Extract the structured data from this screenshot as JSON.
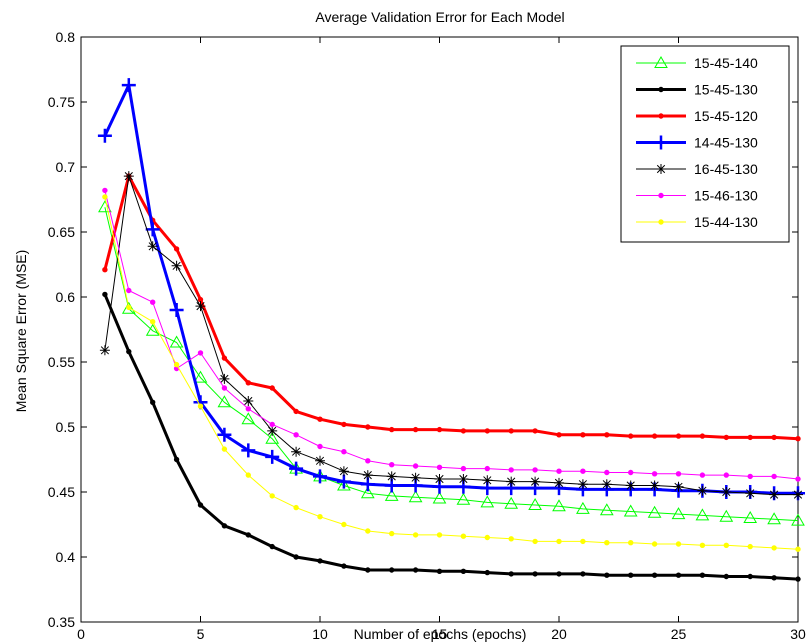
{
  "chart_data": {
    "type": "line",
    "title": "Average Validation Error for Each Model",
    "xlabel": "Number of epochs (epochs)",
    "ylabel": "Mean Square Error (MSE)",
    "xlim": [
      0,
      30
    ],
    "ylim": [
      0.35,
      0.8
    ],
    "xticks": [
      0,
      5,
      10,
      15,
      20,
      25,
      30
    ],
    "yticks": [
      0.35,
      0.4,
      0.45,
      0.5,
      0.55,
      0.6,
      0.65,
      0.7,
      0.75,
      0.8
    ],
    "ytick_labels": [
      "0.35",
      "0.4",
      "0.45",
      "0.5",
      "0.55",
      "0.6",
      "0.65",
      "0.7",
      "0.75",
      "0.8"
    ],
    "grid": false,
    "legend_position": "top-right",
    "x": [
      1,
      2,
      3,
      4,
      5,
      6,
      7,
      8,
      9,
      10,
      11,
      12,
      13,
      14,
      15,
      16,
      17,
      18,
      19,
      20,
      21,
      22,
      23,
      24,
      25,
      26,
      27,
      28,
      29,
      30
    ],
    "series": [
      {
        "name": "15-45-140",
        "color": "#00ff00",
        "marker": "triangle",
        "line_width": 1,
        "values": [
          0.669,
          0.591,
          0.574,
          0.565,
          0.538,
          0.519,
          0.506,
          0.491,
          0.468,
          0.462,
          0.455,
          0.449,
          0.447,
          0.446,
          0.445,
          0.444,
          0.442,
          0.441,
          0.44,
          0.439,
          0.437,
          0.436,
          0.435,
          0.434,
          0.433,
          0.432,
          0.431,
          0.43,
          0.429,
          0.428
        ]
      },
      {
        "name": "15-45-130",
        "color": "#000000",
        "marker": "dot",
        "line_width": 3,
        "values": [
          0.602,
          0.558,
          0.519,
          0.475,
          0.44,
          0.424,
          0.417,
          0.408,
          0.4,
          0.397,
          0.393,
          0.39,
          0.39,
          0.39,
          0.389,
          0.389,
          0.388,
          0.387,
          0.387,
          0.387,
          0.387,
          0.386,
          0.386,
          0.386,
          0.386,
          0.386,
          0.385,
          0.385,
          0.384,
          0.383
        ]
      },
      {
        "name": "15-45-120",
        "color": "#ff0000",
        "marker": "dot",
        "line_width": 3,
        "values": [
          0.621,
          0.693,
          0.659,
          0.637,
          0.598,
          0.553,
          0.534,
          0.53,
          0.512,
          0.506,
          0.502,
          0.5,
          0.498,
          0.498,
          0.498,
          0.497,
          0.497,
          0.497,
          0.497,
          0.494,
          0.494,
          0.494,
          0.493,
          0.493,
          0.493,
          0.493,
          0.492,
          0.492,
          0.492,
          0.491
        ]
      },
      {
        "name": "14-45-130",
        "color": "#0000ff",
        "marker": "plus",
        "line_width": 3,
        "values": [
          0.724,
          0.763,
          0.652,
          0.59,
          0.519,
          0.494,
          0.482,
          0.477,
          0.468,
          0.462,
          0.458,
          0.456,
          0.455,
          0.455,
          0.454,
          0.454,
          0.453,
          0.453,
          0.453,
          0.453,
          0.452,
          0.452,
          0.452,
          0.452,
          0.451,
          0.451,
          0.45,
          0.45,
          0.449,
          0.449
        ]
      },
      {
        "name": "16-45-130",
        "color": "#000000",
        "marker": "star",
        "line_width": 1,
        "values": [
          0.559,
          0.693,
          0.639,
          0.624,
          0.593,
          0.537,
          0.52,
          0.497,
          0.481,
          0.474,
          0.466,
          0.463,
          0.462,
          0.461,
          0.46,
          0.46,
          0.459,
          0.458,
          0.458,
          0.457,
          0.456,
          0.456,
          0.455,
          0.455,
          0.454,
          0.451,
          0.45,
          0.449,
          0.448,
          0.448
        ]
      },
      {
        "name": "15-46-130",
        "color": "#ff00ff",
        "marker": "dot",
        "line_width": 1,
        "values": [
          0.682,
          0.605,
          0.596,
          0.545,
          0.557,
          0.53,
          0.514,
          0.502,
          0.494,
          0.485,
          0.481,
          0.474,
          0.471,
          0.47,
          0.469,
          0.468,
          0.468,
          0.467,
          0.467,
          0.466,
          0.466,
          0.465,
          0.465,
          0.464,
          0.464,
          0.463,
          0.463,
          0.462,
          0.462,
          0.46
        ]
      },
      {
        "name": "15-44-130",
        "color": "#ffff00",
        "marker": "dot",
        "line_width": 1,
        "values": [
          0.677,
          0.592,
          0.581,
          0.548,
          0.516,
          0.483,
          0.463,
          0.447,
          0.438,
          0.431,
          0.425,
          0.42,
          0.418,
          0.417,
          0.417,
          0.416,
          0.415,
          0.414,
          0.412,
          0.412,
          0.412,
          0.411,
          0.411,
          0.41,
          0.41,
          0.409,
          0.409,
          0.408,
          0.407,
          0.406
        ]
      }
    ]
  }
}
